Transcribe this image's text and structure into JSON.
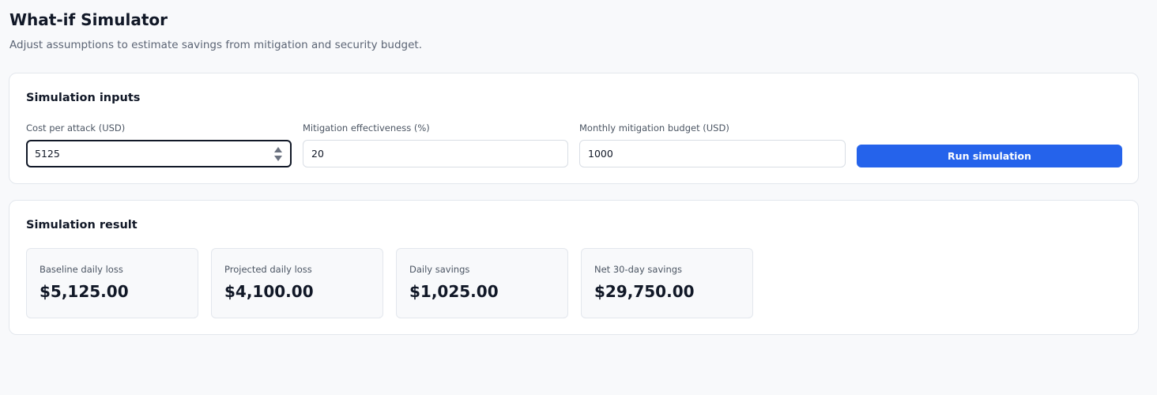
{
  "header": {
    "title": "What-if Simulator",
    "subtitle": "Adjust assumptions to estimate savings from mitigation and security budget."
  },
  "inputs_card": {
    "title": "Simulation inputs",
    "fields": [
      {
        "label": "Cost per attack (USD)",
        "value": "5125"
      },
      {
        "label": "Mitigation effectiveness (%)",
        "value": "20"
      },
      {
        "label": "Monthly mitigation budget (USD)",
        "value": "1000"
      }
    ],
    "run_button_label": "Run simulation",
    "accent_color": "#2563eb"
  },
  "result_card": {
    "title": "Simulation result",
    "stats": [
      {
        "label": "Baseline daily loss",
        "value": "$5,125.00"
      },
      {
        "label": "Projected daily loss",
        "value": "$4,100.00"
      },
      {
        "label": "Daily savings",
        "value": "$1,025.00"
      },
      {
        "label": "Net 30-day savings",
        "value": "$29,750.00"
      }
    ]
  }
}
